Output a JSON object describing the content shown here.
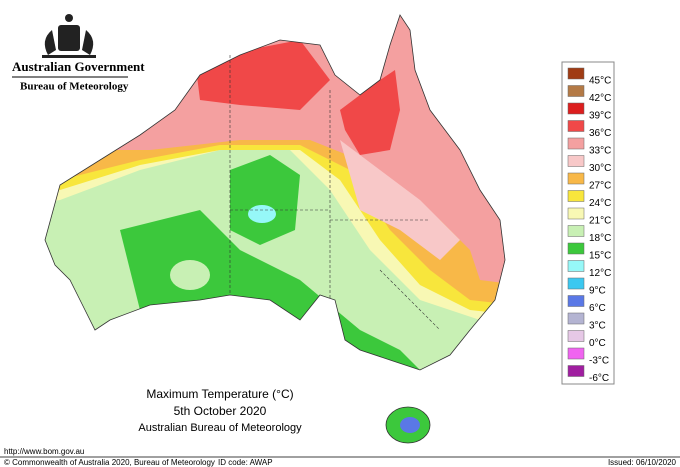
{
  "header": {
    "government": "Australian Government",
    "bureau": "Bureau of Meteorology"
  },
  "map": {
    "title": "Maximum Temperature (°C)",
    "date": "5th October 2020",
    "source": "Australian Bureau of Meteorology"
  },
  "legend": {
    "items": [
      {
        "label": "45°C",
        "color": "#a03c14"
      },
      {
        "label": "42°C",
        "color": "#b47a46"
      },
      {
        "label": "39°C",
        "color": "#dc1e1e"
      },
      {
        "label": "36°C",
        "color": "#f04848"
      },
      {
        "label": "33°C",
        "color": "#f4a0a0"
      },
      {
        "label": "30°C",
        "color": "#f8c8c8"
      },
      {
        "label": "27°C",
        "color": "#f8b848"
      },
      {
        "label": "24°C",
        "color": "#f8e63c"
      },
      {
        "label": "21°C",
        "color": "#f8f8b4"
      },
      {
        "label": "18°C",
        "color": "#c8f0b4"
      },
      {
        "label": "15°C",
        "color": "#3cc83c"
      },
      {
        "label": "12°C",
        "color": "#96f8f8"
      },
      {
        "label": "9°C",
        "color": "#3cc8f0"
      },
      {
        "label": "6°C",
        "color": "#5a78e6"
      },
      {
        "label": "3°C",
        "color": "#b4b4d2"
      },
      {
        "label": "0°C",
        "color": "#e6c8e6"
      },
      {
        "label": "-3°C",
        "color": "#f064f0"
      },
      {
        "label": "-6°C",
        "color": "#a01ea0"
      }
    ]
  },
  "footer": {
    "url": "http://www.bom.gov.au",
    "copyright": "© Commonwealth of Australia 2020, Bureau of Meteorology",
    "id_code": "ID code: AWAP",
    "issued": "Issued: 06/10/2020"
  }
}
